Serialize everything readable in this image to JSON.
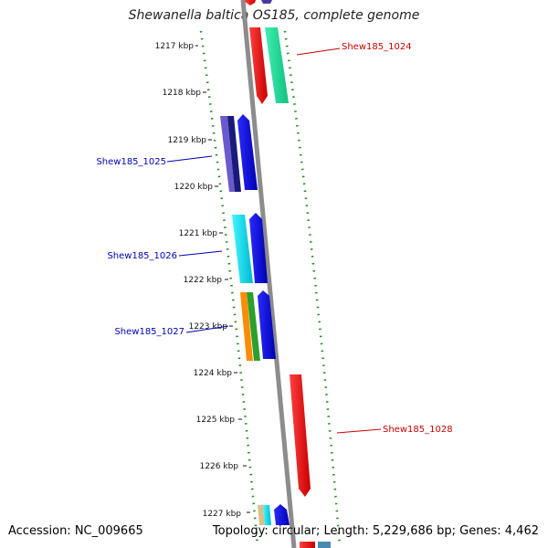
{
  "title": "Shewanella baltica OS185, complete genome",
  "footer": {
    "accession": "Accession: NC_009665",
    "summary": "Topology: circular; Length: 5,229,686 bp; Genes: 4,462"
  },
  "ticks": [
    "1217 kbp",
    "1218 kbp",
    "1219 kbp",
    "1220 kbp",
    "1221 kbp",
    "1222 kbp",
    "1223 kbp",
    "1224 kbp",
    "1225 kbp",
    "1226 kbp",
    "1227 kbp"
  ],
  "gene_labels": [
    {
      "text": "Shew185_1024",
      "color": "#cc0000"
    },
    {
      "text": "Shew185_1025",
      "color": "#0000bb"
    },
    {
      "text": "Shew185_1026",
      "color": "#0000bb"
    },
    {
      "text": "Shew185_1027",
      "color": "#0000bb"
    },
    {
      "text": "Shew185_1028",
      "color": "#cc0000"
    }
  ],
  "colors": {
    "backbone": "#8c8c8c",
    "gc_dots": "#1f8a1f",
    "red": "#ff0000",
    "teal": "#1fe89a",
    "navy": "#1a1a7a",
    "slate": "#6a5acd",
    "blue": "#0000ee",
    "cyan": "#00e0f0",
    "orange": "#ff8c00",
    "green": "#2ca02c",
    "tan": "#d8c08a"
  }
}
